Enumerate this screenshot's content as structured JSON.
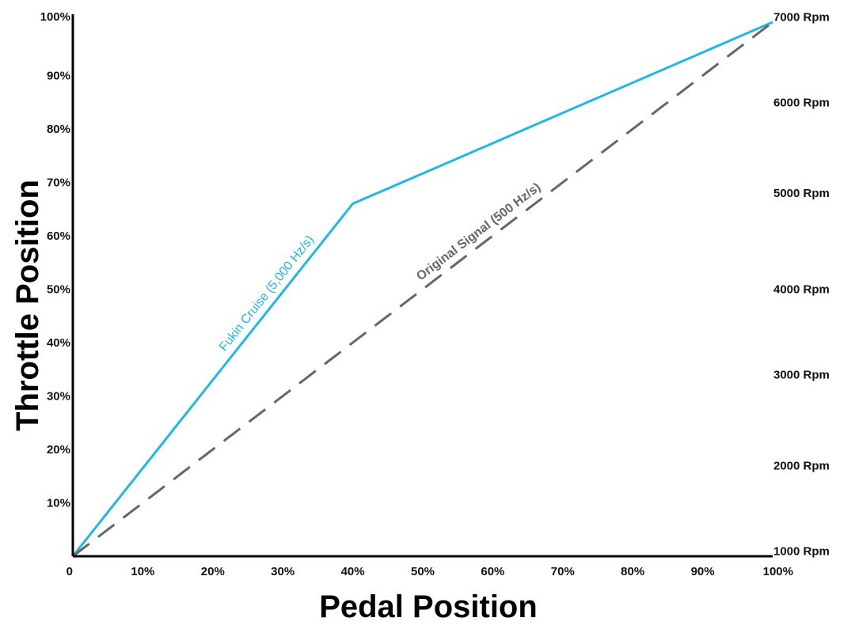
{
  "chart_data": {
    "type": "line",
    "xlabel": "Pedal Position",
    "ylabel": "Throttle Position",
    "xlim": [
      0,
      100
    ],
    "ylim": [
      0,
      100
    ],
    "x_ticks": [
      "0",
      "10%",
      "20%",
      "30%",
      "40%",
      "50%",
      "60%",
      "70%",
      "80%",
      "90%",
      "100%"
    ],
    "y_ticks": [
      "10%",
      "20%",
      "30%",
      "40%",
      "50%",
      "60%",
      "70%",
      "80%",
      "90%",
      "100%"
    ],
    "y2_ticks": [
      {
        "label": "1000 Rpm",
        "y": 1
      },
      {
        "label": "2000 Rpm",
        "y": 17
      },
      {
        "label": "3000 Rpm",
        "y": 34
      },
      {
        "label": "4000 Rpm",
        "y": 50
      },
      {
        "label": "5000 Rpm",
        "y": 68
      },
      {
        "label": "6000 Rpm",
        "y": 85
      },
      {
        "label": "7000 Rpm",
        "y": 101
      }
    ],
    "series": [
      {
        "name": "Fukin Cruise (5,000 Hz/s)",
        "color": "#1fb7e6",
        "style": "solid",
        "x": [
          0,
          40,
          100
        ],
        "y": [
          0,
          66,
          100
        ],
        "label_at": 29
      },
      {
        "name": "Original Signal (500 Hz/s)",
        "color": "#666666",
        "style": "dashed",
        "x": [
          0,
          100
        ],
        "y": [
          0,
          100
        ],
        "label_at": 59
      }
    ],
    "grid": false
  }
}
